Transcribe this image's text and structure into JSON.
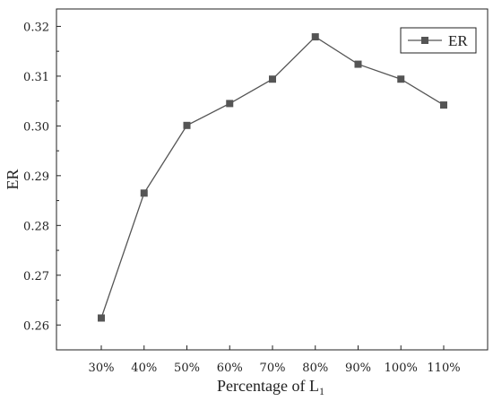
{
  "chart_data": {
    "type": "line",
    "categories": [
      "30%",
      "40%",
      "50%",
      "60%",
      "70%",
      "80%",
      "90%",
      "100%",
      "110%"
    ],
    "series": [
      {
        "name": "ER",
        "values": [
          0.2614,
          0.2865,
          0.3001,
          0.3045,
          0.3094,
          0.3179,
          0.3124,
          0.3094,
          0.3042
        ],
        "color": "#555555",
        "marker": "square"
      }
    ],
    "ylabel": "ER",
    "xlabel_main": "Percentage of L",
    "xlabel_sub": "1",
    "ylim": [
      0.255,
      0.3235
    ],
    "yticks": [
      "0.26",
      "0.27",
      "0.28",
      "0.29",
      "0.30",
      "0.31",
      "0.32"
    ],
    "legend": {
      "label": "ER",
      "position": "top-right"
    },
    "grid": false
  }
}
